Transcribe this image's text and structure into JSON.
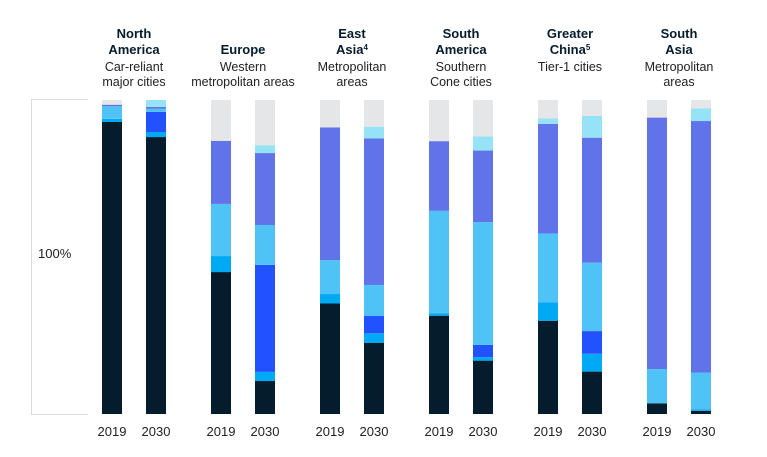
{
  "chart_data": {
    "type": "bar",
    "stacked": true,
    "normalized": true,
    "y_axis_label": "100%",
    "ylim": [
      0,
      100
    ],
    "grid": false,
    "legend": "none",
    "segment_colors": [
      "#051c2c",
      "#00a9f4",
      "#2251ff",
      "#4fc3f5",
      "#6173e8",
      "#96e3f8",
      "#e5e6e8"
    ],
    "groups": [
      {
        "title": [
          "North",
          "America"
        ],
        "sup": "",
        "subtitle": [
          "Car-reliant",
          "major cities"
        ],
        "bars": [
          {
            "year": "2019",
            "values": [
              93,
              1,
              0,
              4,
              0.5,
              0,
              1.5
            ]
          },
          {
            "year": "2030",
            "values": [
              88.2,
              1.6,
              6.4,
              1,
              0.6,
              2.2,
              0
            ]
          }
        ]
      },
      {
        "title": [
          "",
          "Europe"
        ],
        "sup": "",
        "subtitle": [
          "Western",
          "metropolitan areas"
        ],
        "bars": [
          {
            "year": "2019",
            "values": [
              45.2,
              5.1,
              0,
              16.6,
              20.1,
              0,
              13
            ]
          },
          {
            "year": "2030",
            "values": [
              10.5,
              2.9,
              34.1,
              12.7,
              22.9,
              2.5,
              14.4
            ]
          }
        ]
      },
      {
        "title": [
          "East",
          "Asia"
        ],
        "sup": "4",
        "subtitle": [
          "Metropolitan",
          "areas"
        ],
        "bars": [
          {
            "year": "2019",
            "values": [
              35.2,
              3.0,
              0,
              10.8,
              42.3,
              0,
              8.7
            ]
          },
          {
            "year": "2030",
            "values": [
              22.7,
              3.0,
              5.5,
              9.9,
              46.7,
              3.7,
              8.5
            ]
          }
        ]
      },
      {
        "title": [
          "South",
          "America"
        ],
        "sup": "",
        "subtitle": [
          "Southern",
          "Cone cities"
        ],
        "bars": [
          {
            "year": "2019",
            "values": [
              31.3,
              0.7,
              0,
              32.7,
              22.2,
              0,
              13.1
            ]
          },
          {
            "year": "2030",
            "values": [
              17.0,
              1.1,
              3.9,
              39.1,
              22.8,
              4.5,
              11.6
            ]
          }
        ]
      },
      {
        "title": [
          "Greater",
          "China"
        ],
        "sup": "5",
        "subtitle": [
          "Tier-1 cities",
          ""
        ],
        "bars": [
          {
            "year": "2019",
            "values": [
              29.7,
              5.8,
              0,
              22.0,
              34.9,
              1.7,
              5.9
            ]
          },
          {
            "year": "2030",
            "values": [
              13.5,
              5.7,
              7.2,
              21.8,
              39.8,
              6.9,
              5.1
            ]
          }
        ]
      },
      {
        "title": [
          "South",
          "Asia"
        ],
        "sup": "",
        "subtitle": [
          "Metropolitan",
          "areas"
        ],
        "bars": [
          {
            "year": "2019",
            "values": [
              3.4,
              0,
              0,
              10.9,
              80.1,
              0,
              5.6
            ]
          },
          {
            "year": "2030",
            "values": [
              1.0,
              0.5,
              0,
              11.7,
              80.1,
              4.0,
              2.7
            ]
          }
        ]
      }
    ]
  }
}
